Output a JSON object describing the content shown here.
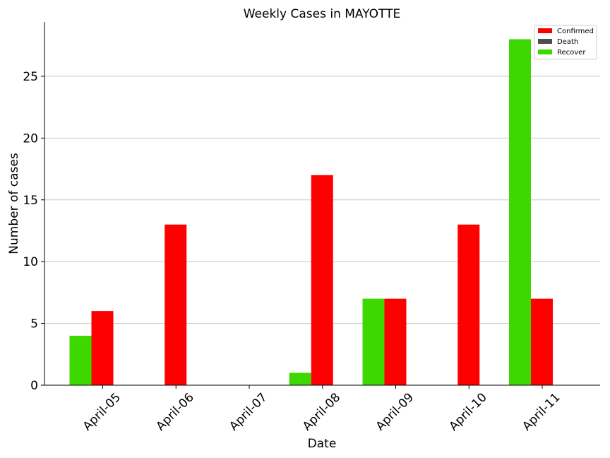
{
  "chart_data": {
    "type": "bar",
    "title": "Weekly Cases in MAYOTTE",
    "xlabel": "Date",
    "ylabel": "Number of cases",
    "categories": [
      "April-05",
      "April-06",
      "April-07",
      "April-08",
      "April-09",
      "April-10",
      "April-11"
    ],
    "series": [
      {
        "name": "Confirmed",
        "color": "#ff0000",
        "values": [
          6,
          13,
          0,
          17,
          7,
          13,
          7
        ]
      },
      {
        "name": "Death",
        "color": "#4d4d4d",
        "values": [
          0,
          0,
          0,
          0,
          0,
          0,
          0
        ]
      },
      {
        "name": "Recover",
        "color": "#3dd800",
        "values": [
          4,
          0,
          0,
          1,
          7,
          0,
          28
        ]
      }
    ],
    "yticks": [
      0,
      5,
      10,
      15,
      20,
      25
    ],
    "ylim": [
      0,
      29.4
    ],
    "grid": "horizontal",
    "legend_position": "top-right"
  }
}
